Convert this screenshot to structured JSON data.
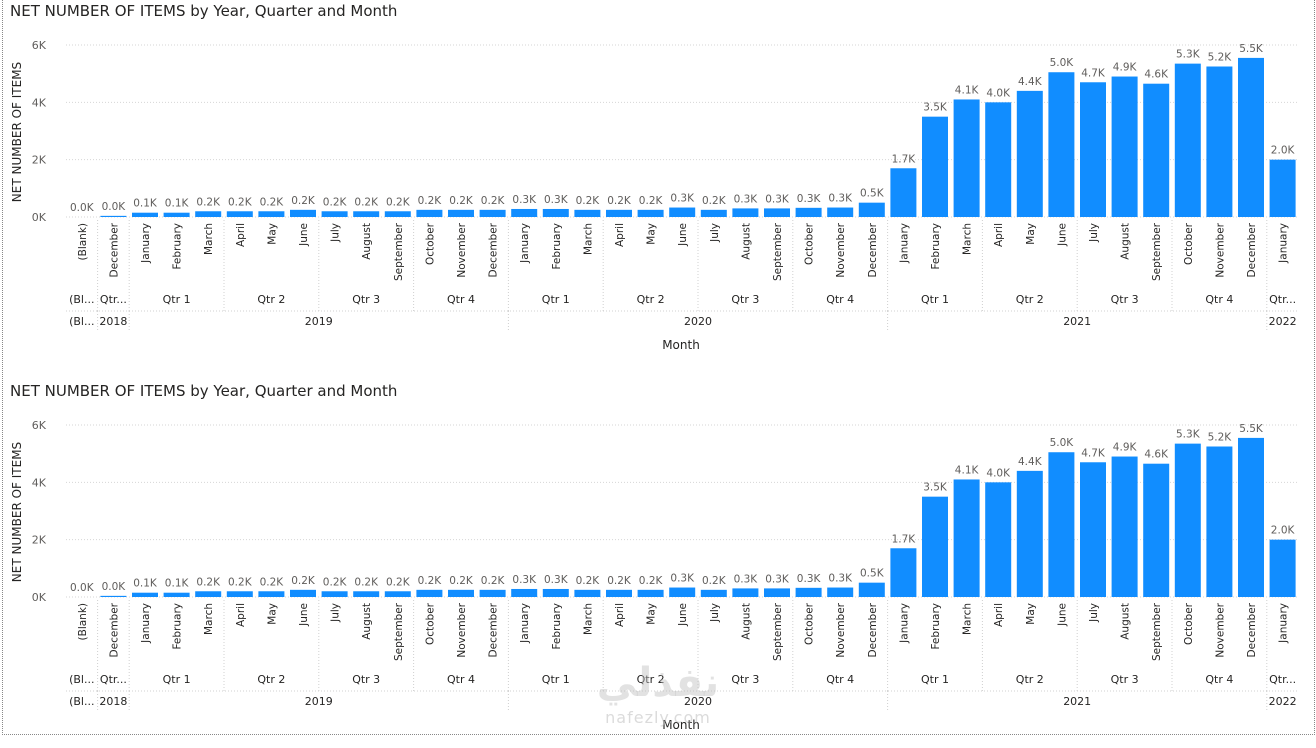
{
  "chart_data": [
    {
      "type": "bar",
      "title": "NET NUMBER OF ITEMS by Year, Quarter and Month",
      "xlabel": "Month",
      "ylabel": "NET NUMBER OF ITEMS",
      "ylim": [
        0,
        6000
      ],
      "y_ticks": [
        "0K",
        "2K",
        "4K",
        "6K"
      ],
      "bar_color": "#118DFF",
      "categories": [
        "(Blank)",
        "December",
        "January",
        "February",
        "March",
        "April",
        "May",
        "June",
        "July",
        "August",
        "September",
        "October",
        "November",
        "December",
        "January",
        "February",
        "March",
        "April",
        "May",
        "June",
        "July",
        "August",
        "September",
        "October",
        "November",
        "December",
        "January",
        "February",
        "March",
        "April",
        "May",
        "June",
        "July",
        "August",
        "September",
        "October",
        "November",
        "December",
        "January"
      ],
      "values": [
        0,
        40,
        150,
        150,
        200,
        200,
        200,
        250,
        200,
        200,
        200,
        250,
        250,
        250,
        280,
        280,
        250,
        250,
        250,
        330,
        250,
        300,
        300,
        320,
        330,
        500,
        1700,
        3500,
        4100,
        4000,
        4400,
        5050,
        4700,
        4900,
        4650,
        5350,
        5250,
        5550,
        2000
      ],
      "data_labels": [
        "0.0K",
        "0.0K",
        "0.1K",
        "0.1K",
        "0.2K",
        "0.2K",
        "0.2K",
        "0.2K",
        "0.2K",
        "0.2K",
        "0.2K",
        "0.2K",
        "0.2K",
        "0.2K",
        "0.3K",
        "0.3K",
        "0.2K",
        "0.2K",
        "0.2K",
        "0.3K",
        "0.2K",
        "0.3K",
        "0.3K",
        "0.3K",
        "0.3K",
        "0.5K",
        "1.7K",
        "3.5K",
        "4.1K",
        "4.0K",
        "4.4K",
        "5.0K",
        "4.7K",
        "4.9K",
        "4.6K",
        "5.3K",
        "5.2K",
        "5.5K",
        "2.0K"
      ],
      "quarters": [
        {
          "label": "(Bl...",
          "start": 0,
          "end": 0
        },
        {
          "label": "Qtr...",
          "start": 1,
          "end": 1
        },
        {
          "label": "Qtr 1",
          "start": 2,
          "end": 4
        },
        {
          "label": "Qtr 2",
          "start": 5,
          "end": 7
        },
        {
          "label": "Qtr 3",
          "start": 8,
          "end": 10
        },
        {
          "label": "Qtr 4",
          "start": 11,
          "end": 13
        },
        {
          "label": "Qtr 1",
          "start": 14,
          "end": 16
        },
        {
          "label": "Qtr 2",
          "start": 17,
          "end": 19
        },
        {
          "label": "Qtr 3",
          "start": 20,
          "end": 22
        },
        {
          "label": "Qtr 4",
          "start": 23,
          "end": 25
        },
        {
          "label": "Qtr 1",
          "start": 26,
          "end": 28
        },
        {
          "label": "Qtr 2",
          "start": 29,
          "end": 31
        },
        {
          "label": "Qtr 3",
          "start": 32,
          "end": 34
        },
        {
          "label": "Qtr 4",
          "start": 35,
          "end": 37
        },
        {
          "label": "Qtr...",
          "start": 38,
          "end": 38
        }
      ],
      "years": [
        {
          "label": "(Bl...",
          "start": 0,
          "end": 0
        },
        {
          "label": "2018",
          "start": 1,
          "end": 1
        },
        {
          "label": "2019",
          "start": 2,
          "end": 13
        },
        {
          "label": "2020",
          "start": 14,
          "end": 25
        },
        {
          "label": "2021",
          "start": 26,
          "end": 37
        },
        {
          "label": "2022",
          "start": 38,
          "end": 38
        }
      ]
    },
    {
      "type": "bar",
      "title": "NET NUMBER OF ITEMS by Year, Quarter and Month",
      "xlabel": "Month",
      "ylabel": "NET NUMBER OF ITEMS",
      "ylim": [
        0,
        6000
      ],
      "y_ticks": [
        "0K",
        "2K",
        "4K",
        "6K"
      ],
      "bar_color": "#118DFF",
      "categories": [
        "(Blank)",
        "December",
        "January",
        "February",
        "March",
        "April",
        "May",
        "June",
        "July",
        "August",
        "September",
        "October",
        "November",
        "December",
        "January",
        "February",
        "March",
        "April",
        "May",
        "June",
        "July",
        "August",
        "September",
        "October",
        "November",
        "December",
        "January",
        "February",
        "March",
        "April",
        "May",
        "June",
        "July",
        "August",
        "September",
        "October",
        "November",
        "December",
        "January"
      ],
      "values": [
        0,
        40,
        150,
        150,
        200,
        200,
        200,
        250,
        200,
        200,
        200,
        250,
        250,
        250,
        280,
        280,
        250,
        250,
        250,
        330,
        250,
        300,
        300,
        320,
        330,
        500,
        1700,
        3500,
        4100,
        4000,
        4400,
        5050,
        4700,
        4900,
        4650,
        5350,
        5250,
        5550,
        2000
      ],
      "data_labels": [
        "0.0K",
        "0.0K",
        "0.1K",
        "0.1K",
        "0.2K",
        "0.2K",
        "0.2K",
        "0.2K",
        "0.2K",
        "0.2K",
        "0.2K",
        "0.2K",
        "0.2K",
        "0.2K",
        "0.3K",
        "0.3K",
        "0.2K",
        "0.2K",
        "0.2K",
        "0.3K",
        "0.2K",
        "0.3K",
        "0.3K",
        "0.3K",
        "0.3K",
        "0.5K",
        "1.7K",
        "3.5K",
        "4.1K",
        "4.0K",
        "4.4K",
        "5.0K",
        "4.7K",
        "4.9K",
        "4.6K",
        "5.3K",
        "5.2K",
        "5.5K",
        "2.0K"
      ],
      "quarters": [
        {
          "label": "(Bl...",
          "start": 0,
          "end": 0
        },
        {
          "label": "Qtr...",
          "start": 1,
          "end": 1
        },
        {
          "label": "Qtr 1",
          "start": 2,
          "end": 4
        },
        {
          "label": "Qtr 2",
          "start": 5,
          "end": 7
        },
        {
          "label": "Qtr 3",
          "start": 8,
          "end": 10
        },
        {
          "label": "Qtr 4",
          "start": 11,
          "end": 13
        },
        {
          "label": "Qtr 1",
          "start": 14,
          "end": 16
        },
        {
          "label": "Qtr 2",
          "start": 17,
          "end": 19
        },
        {
          "label": "Qtr 3",
          "start": 20,
          "end": 22
        },
        {
          "label": "Qtr 4",
          "start": 23,
          "end": 25
        },
        {
          "label": "Qtr 1",
          "start": 26,
          "end": 28
        },
        {
          "label": "Qtr 2",
          "start": 29,
          "end": 31
        },
        {
          "label": "Qtr 3",
          "start": 32,
          "end": 34
        },
        {
          "label": "Qtr 4",
          "start": 35,
          "end": 37
        },
        {
          "label": "Qtr...",
          "start": 38,
          "end": 38
        }
      ],
      "years": [
        {
          "label": "(Bl...",
          "start": 0,
          "end": 0
        },
        {
          "label": "2018",
          "start": 1,
          "end": 1
        },
        {
          "label": "2019",
          "start": 2,
          "end": 13
        },
        {
          "label": "2020",
          "start": 14,
          "end": 25
        },
        {
          "label": "2021",
          "start": 26,
          "end": 37
        },
        {
          "label": "2022",
          "start": 38,
          "end": 38
        }
      ]
    }
  ],
  "watermark": {
    "arabic": "نفذلي",
    "latin": "nafezly.com"
  }
}
